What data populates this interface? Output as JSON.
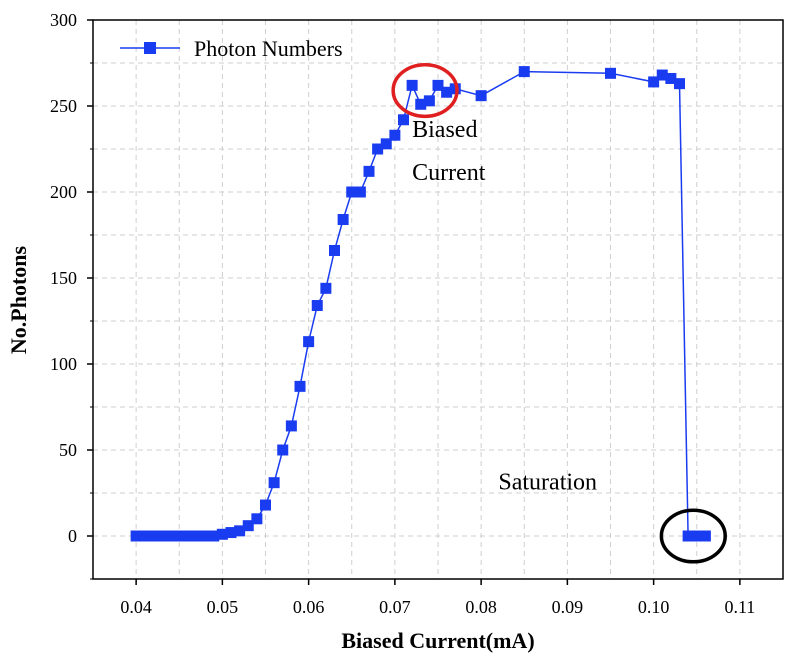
{
  "chart_data": {
    "type": "line",
    "title": "",
    "xlabel": "Biased Current(mA)",
    "ylabel": "No.Photons",
    "xlim": [
      0.035,
      0.115
    ],
    "ylim": [
      -25,
      300
    ],
    "grid": true,
    "legend_position": "top-left",
    "x_ticks": [
      0.04,
      0.05,
      0.06,
      0.07,
      0.08,
      0.09,
      0.1,
      0.11
    ],
    "x_tick_labels": [
      "0.04",
      "0.05",
      "0.06",
      "0.07",
      "0.08",
      "0.09",
      "0.10",
      "0.11"
    ],
    "y_ticks": [
      0,
      50,
      100,
      150,
      200,
      250,
      300
    ],
    "y_tick_labels": [
      "0",
      "50",
      "100",
      "150",
      "200",
      "250",
      "300"
    ],
    "series": [
      {
        "name": "Photon Numbers",
        "color": "#1a3cf0",
        "marker": "square",
        "x": [
          0.04,
          0.041,
          0.042,
          0.043,
          0.044,
          0.045,
          0.046,
          0.047,
          0.048,
          0.049,
          0.05,
          0.051,
          0.052,
          0.053,
          0.054,
          0.055,
          0.056,
          0.057,
          0.058,
          0.059,
          0.06,
          0.061,
          0.062,
          0.063,
          0.064,
          0.065,
          0.066,
          0.067,
          0.068,
          0.069,
          0.07,
          0.071,
          0.072,
          0.073,
          0.074,
          0.075,
          0.076,
          0.077,
          0.08,
          0.085,
          0.095,
          0.1,
          0.101,
          0.102,
          0.103,
          0.104,
          0.105,
          0.106
        ],
        "y": [
          0,
          0,
          0,
          0,
          0,
          0,
          0,
          0,
          0,
          0,
          1,
          2,
          3,
          6,
          10,
          18,
          31,
          50,
          64,
          87,
          113,
          134,
          144,
          166,
          184,
          200,
          200,
          212,
          225,
          228,
          233,
          242,
          262,
          251,
          253,
          262,
          258,
          260,
          256,
          270,
          269,
          264,
          268,
          266,
          263,
          0,
          0,
          0
        ]
      }
    ],
    "annotations": [
      {
        "text": "Biased",
        "x": 0.072,
        "y": 232
      },
      {
        "text": "Current",
        "x": 0.072,
        "y": 207
      },
      {
        "text": "Saturation",
        "x": 0.082,
        "y": 27
      }
    ],
    "highlights": [
      {
        "label": "biased-current-ellipse",
        "cx": 0.0735,
        "cy": 259,
        "rx": 0.0037,
        "ry": 15,
        "color": "#e02020"
      },
      {
        "label": "saturation-ellipse",
        "cx": 0.1046,
        "cy": 0,
        "rx": 0.0037,
        "ry": 15,
        "color": "#000000"
      }
    ]
  }
}
